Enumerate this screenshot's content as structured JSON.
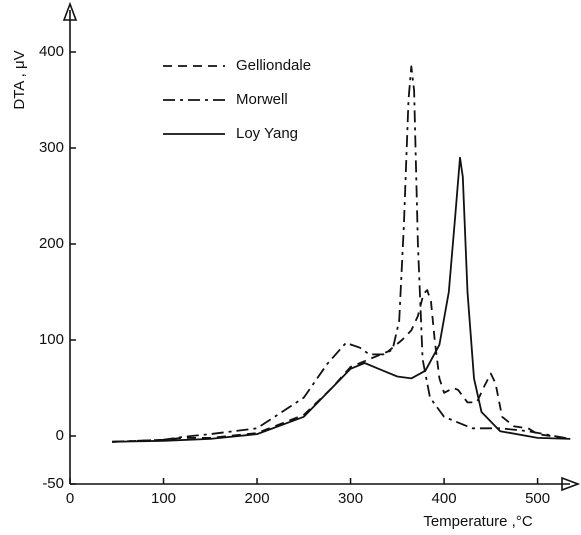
{
  "chart_data": {
    "type": "line",
    "x_label": "Temperature ,°C",
    "y_label": "DTA , μV",
    "xlim": [
      0,
      540
    ],
    "ylim": [
      -50,
      440
    ],
    "xticks": [
      0,
      100,
      200,
      300,
      400,
      500
    ],
    "yticks": [
      -50,
      0,
      100,
      200,
      300,
      400
    ],
    "series": [
      {
        "name": "Gelliondale",
        "color": "#111111",
        "style": "dashed",
        "x": [
          45,
          100,
          120,
          150,
          200,
          250,
          280,
          300,
          320,
          340,
          355,
          365,
          372,
          378,
          382,
          386,
          390,
          395,
          400,
          410,
          415,
          425,
          435,
          442,
          450,
          455,
          462,
          475,
          490,
          500,
          535
        ],
        "values": [
          -6,
          -4,
          -2,
          -2,
          3,
          22,
          50,
          72,
          80,
          88,
          100,
          110,
          125,
          148,
          152,
          140,
          100,
          60,
          45,
          50,
          48,
          35,
          35,
          50,
          65,
          55,
          20,
          10,
          8,
          2,
          -3
        ]
      },
      {
        "name": "Morwell",
        "color": "#111111",
        "style": "dashdot",
        "x": [
          45,
          100,
          120,
          150,
          200,
          250,
          275,
          295,
          310,
          320,
          335,
          345,
          352,
          357,
          362,
          365,
          368,
          372,
          377,
          385,
          400,
          430,
          460,
          490,
          535
        ],
        "values": [
          -6,
          -4,
          -1,
          2,
          8,
          40,
          75,
          97,
          92,
          85,
          85,
          90,
          120,
          220,
          350,
          385,
          360,
          200,
          80,
          40,
          20,
          8,
          8,
          5,
          -3
        ]
      },
      {
        "name": "Loy Yang",
        "color": "#111111",
        "style": "solid",
        "x": [
          45,
          100,
          150,
          200,
          250,
          280,
          300,
          315,
          330,
          350,
          365,
          380,
          395,
          405,
          412,
          417,
          420,
          425,
          432,
          440,
          460,
          500,
          535
        ],
        "values": [
          -6,
          -5,
          -3,
          2,
          20,
          50,
          70,
          76,
          70,
          62,
          60,
          68,
          95,
          150,
          230,
          290,
          270,
          150,
          60,
          25,
          5,
          -2,
          -3
        ]
      }
    ]
  }
}
